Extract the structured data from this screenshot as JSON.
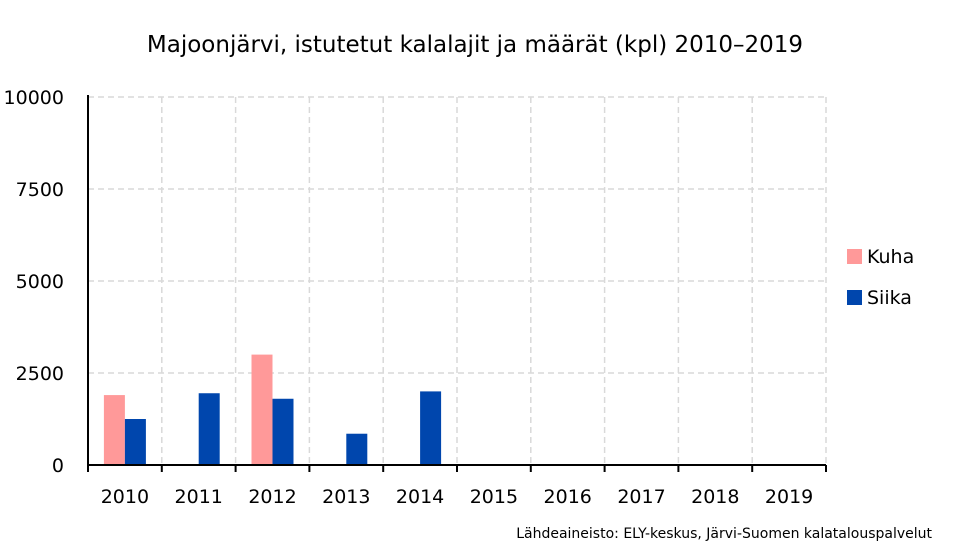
{
  "chart_data": {
    "type": "bar",
    "title": "Majoonjärvi, istutetut kalalajit ja määrät (kpl) 2010–2019",
    "xlabel": "",
    "ylabel": "",
    "categories": [
      "2010",
      "2011",
      "2012",
      "2013",
      "2014",
      "2015",
      "2016",
      "2017",
      "2018",
      "2019"
    ],
    "series": [
      {
        "name": "Kuha",
        "color": "#ff9999",
        "values": [
          1900,
          0,
          3000,
          0,
          0,
          0,
          0,
          0,
          0,
          0
        ]
      },
      {
        "name": "Siika",
        "color": "#0046ad",
        "values": [
          1250,
          1950,
          1800,
          850,
          2000,
          0,
          0,
          0,
          0,
          0
        ]
      }
    ],
    "ylim": [
      0,
      10000
    ],
    "yticks": [
      "0",
      "2500",
      "5000",
      "7500",
      "10000"
    ],
    "grid": true,
    "legend": "right",
    "source": "Lähdeaineisto: ELY-keskus, Järvi-Suomen kalatalouspalvelut"
  }
}
